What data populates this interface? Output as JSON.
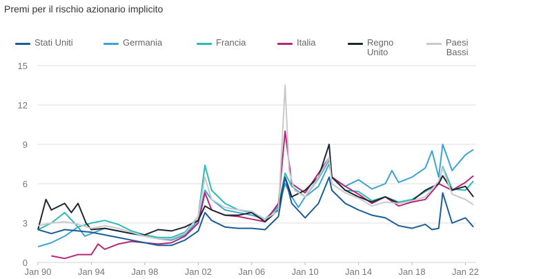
{
  "title": "Premi per il rischio azionario implicito",
  "colors": {
    "grid": "#dcdcdc",
    "tick_text": "#777777"
  },
  "chart_data": {
    "type": "line",
    "title": "Premi per il rischio azionario implicito",
    "xlabel": "",
    "ylabel": "",
    "xlim": [
      1990.0,
      2022.8
    ],
    "ylim": [
      0,
      15
    ],
    "grid": "horizontal",
    "legend_position": "top",
    "x_ticks": [
      {
        "value": 1990,
        "label": "Jan 90"
      },
      {
        "value": 1994,
        "label": "Jan 94"
      },
      {
        "value": 1998,
        "label": "Jan 98"
      },
      {
        "value": 2002,
        "label": "Jan 02"
      },
      {
        "value": 2006,
        "label": "Jan 06"
      },
      {
        "value": 2010,
        "label": "Jan 10"
      },
      {
        "value": 2014,
        "label": "Jan 14"
      },
      {
        "value": 2018,
        "label": "Jan 18"
      },
      {
        "value": 2022,
        "label": "Jan 22"
      }
    ],
    "y_ticks": [
      {
        "value": 0,
        "label": "0"
      },
      {
        "value": 3,
        "label": "3"
      },
      {
        "value": 6,
        "label": "6"
      },
      {
        "value": 9,
        "label": "9"
      },
      {
        "value": 12,
        "label": "12"
      },
      {
        "value": 15,
        "label": "15"
      }
    ],
    "series": [
      {
        "name": "Germania",
        "key": "germania",
        "label_lines": [
          "Germania"
        ],
        "color": "#3aa3d6",
        "x": [
          1990,
          1991,
          1992,
          1993,
          1993.5,
          1994,
          1995,
          1996,
          1997,
          1998,
          1999,
          2000,
          2001,
          2002,
          2002.5,
          2003,
          2004,
          2005,
          2006,
          2007,
          2008,
          2008.5,
          2009,
          2009.5,
          2010,
          2011,
          2011.8,
          2012,
          2013,
          2014,
          2015,
          2016,
          2016.5,
          2017,
          2018,
          2019,
          2019.5,
          2020,
          2020.3,
          2021,
          2021.5,
          2022,
          2022.6
        ],
        "y": [
          1.2,
          1.5,
          2.0,
          2.7,
          2.0,
          2.2,
          2.6,
          2.4,
          2.2,
          2.0,
          1.8,
          1.7,
          2.1,
          3.2,
          5.5,
          4.8,
          4.0,
          3.8,
          3.6,
          3.3,
          4.2,
          6.0,
          5.0,
          4.2,
          5.0,
          5.8,
          7.5,
          6.5,
          5.8,
          6.3,
          5.6,
          6.0,
          7.0,
          6.1,
          6.5,
          7.2,
          8.5,
          6.5,
          9.0,
          7.0,
          7.6,
          8.2,
          8.6
        ]
      },
      {
        "name": "Francia",
        "key": "francia",
        "label_lines": [
          "Francia"
        ],
        "color": "#2bbab5",
        "x": [
          1990,
          1991,
          1992,
          1993,
          1994,
          1995,
          1996,
          1997,
          1998,
          1999,
          2000,
          2001,
          2002,
          2002.5,
          2003,
          2004,
          2005,
          2006,
          2007,
          2008,
          2008.5,
          2009,
          2010,
          2011,
          2011.8,
          2012,
          2013,
          2014,
          2015,
          2016,
          2017,
          2018,
          2019,
          2020,
          2020.3,
          2021,
          2022,
          2022.6
        ],
        "y": [
          2.5,
          3.0,
          3.8,
          2.7,
          3.0,
          3.2,
          2.9,
          2.4,
          2.1,
          1.9,
          1.9,
          2.3,
          3.5,
          7.4,
          5.5,
          4.5,
          4.0,
          3.8,
          3.3,
          4.3,
          6.8,
          5.8,
          5.0,
          6.4,
          7.8,
          6.5,
          5.5,
          5.4,
          4.7,
          5.0,
          4.6,
          4.8,
          5.4,
          6.0,
          7.3,
          5.6,
          5.5,
          6.2
        ]
      },
      {
        "name": "Italia",
        "key": "italia",
        "label_lines": [
          "Italia"
        ],
        "color": "#b52578",
        "x": [
          1991,
          1992,
          1993,
          1994,
          1994.5,
          1995,
          1996,
          1997,
          1998,
          1999,
          2000,
          2001,
          2002,
          2002.5,
          2003,
          2004,
          2005,
          2006,
          2007,
          2008,
          2008.5,
          2009,
          2010,
          2011,
          2011.8,
          2012,
          2013,
          2014,
          2015,
          2016,
          2017,
          2018,
          2019,
          2020,
          2021,
          2022,
          2022.6
        ],
        "y": [
          0.5,
          0.3,
          0.6,
          0.6,
          1.4,
          1.0,
          1.4,
          1.6,
          1.5,
          1.4,
          1.5,
          2.0,
          3.0,
          5.3,
          4.0,
          3.6,
          3.5,
          3.3,
          3.1,
          4.5,
          10.0,
          6.0,
          5.3,
          6.8,
          8.0,
          6.5,
          5.8,
          5.2,
          4.5,
          5.0,
          4.3,
          4.6,
          4.8,
          6.0,
          5.5,
          6.1,
          6.6
        ]
      },
      {
        "name": "Regno Unito",
        "key": "regno-unito",
        "label_lines": [
          "Regno",
          "Unito"
        ],
        "color": "#1f2430",
        "x": [
          1990,
          1990.6,
          1991,
          1992,
          1992.5,
          1993,
          1993.6,
          1994,
          1995,
          1996,
          1997,
          1998,
          1999,
          2000,
          2001,
          2002,
          2002.5,
          2003,
          2004,
          2005,
          2006,
          2007,
          2008,
          2008.5,
          2009,
          2010,
          2011,
          2011.8,
          2012,
          2013,
          2014,
          2015,
          2016,
          2017,
          2018,
          2019,
          2020,
          2020.3,
          2021,
          2022,
          2022.6
        ],
        "y": [
          2.5,
          4.8,
          4.0,
          4.5,
          3.8,
          4.5,
          3.0,
          2.5,
          2.6,
          2.4,
          2.2,
          2.1,
          2.5,
          2.4,
          2.7,
          3.2,
          4.3,
          4.0,
          3.6,
          3.6,
          3.8,
          3.1,
          4.0,
          6.5,
          5.0,
          5.5,
          6.5,
          9.0,
          6.5,
          5.5,
          5.0,
          4.6,
          5.0,
          4.5,
          4.7,
          5.5,
          6.0,
          6.6,
          5.5,
          5.8,
          5.0
        ]
      },
      {
        "name": "Paesi Bassi",
        "key": "paesi-bassi",
        "label_lines": [
          "Paesi",
          "Bassi"
        ],
        "color": "#c9c9c9",
        "x": [
          1990,
          1991,
          1992,
          1993,
          1994,
          1995,
          1996,
          1997,
          1998,
          1999,
          2000,
          2001,
          2002,
          2002.5,
          2003,
          2004,
          2005,
          2006,
          2007,
          2008,
          2008.5,
          2008.8,
          2009.2,
          2010,
          2011,
          2011.8,
          2012,
          2013,
          2014,
          2015,
          2016,
          2017,
          2018,
          2019,
          2020,
          2020.3,
          2021,
          2022,
          2022.6
        ],
        "y": [
          2.8,
          3.0,
          3.1,
          2.9,
          2.6,
          2.8,
          2.6,
          2.3,
          2.0,
          1.8,
          1.8,
          2.2,
          3.5,
          6.5,
          4.8,
          4.2,
          4.0,
          3.9,
          3.3,
          3.9,
          13.5,
          7.0,
          5.5,
          5.0,
          6.5,
          8.0,
          6.0,
          5.3,
          4.9,
          4.3,
          4.6,
          4.5,
          4.7,
          5.0,
          6.2,
          7.2,
          5.2,
          4.8,
          4.4
        ]
      },
      {
        "name": "Stati Uniti",
        "key": "stati-uniti",
        "label_lines": [
          "Stati Uniti"
        ],
        "color": "#1a5c96",
        "x": [
          1990,
          1991,
          1992,
          1993,
          1994,
          1995,
          1996,
          1997,
          1998,
          1999,
          2000,
          2001,
          2002,
          2002.5,
          2003,
          2004,
          2005,
          2006,
          2007,
          2008,
          2008.5,
          2009,
          2010,
          2011,
          2011.8,
          2012,
          2013,
          2014,
          2015,
          2016,
          2017,
          2018,
          2019,
          2019.5,
          2020,
          2020.3,
          2021,
          2022,
          2022.6
        ],
        "y": [
          2.5,
          2.2,
          2.5,
          2.4,
          2.3,
          2.1,
          1.9,
          1.7,
          1.5,
          1.3,
          1.3,
          1.7,
          2.4,
          3.8,
          3.2,
          2.7,
          2.6,
          2.6,
          2.5,
          3.5,
          6.5,
          4.5,
          3.4,
          4.5,
          6.5,
          5.5,
          4.5,
          4.0,
          3.6,
          3.4,
          2.8,
          2.6,
          2.9,
          2.5,
          2.6,
          5.3,
          3.0,
          3.4,
          2.7
        ]
      }
    ]
  }
}
